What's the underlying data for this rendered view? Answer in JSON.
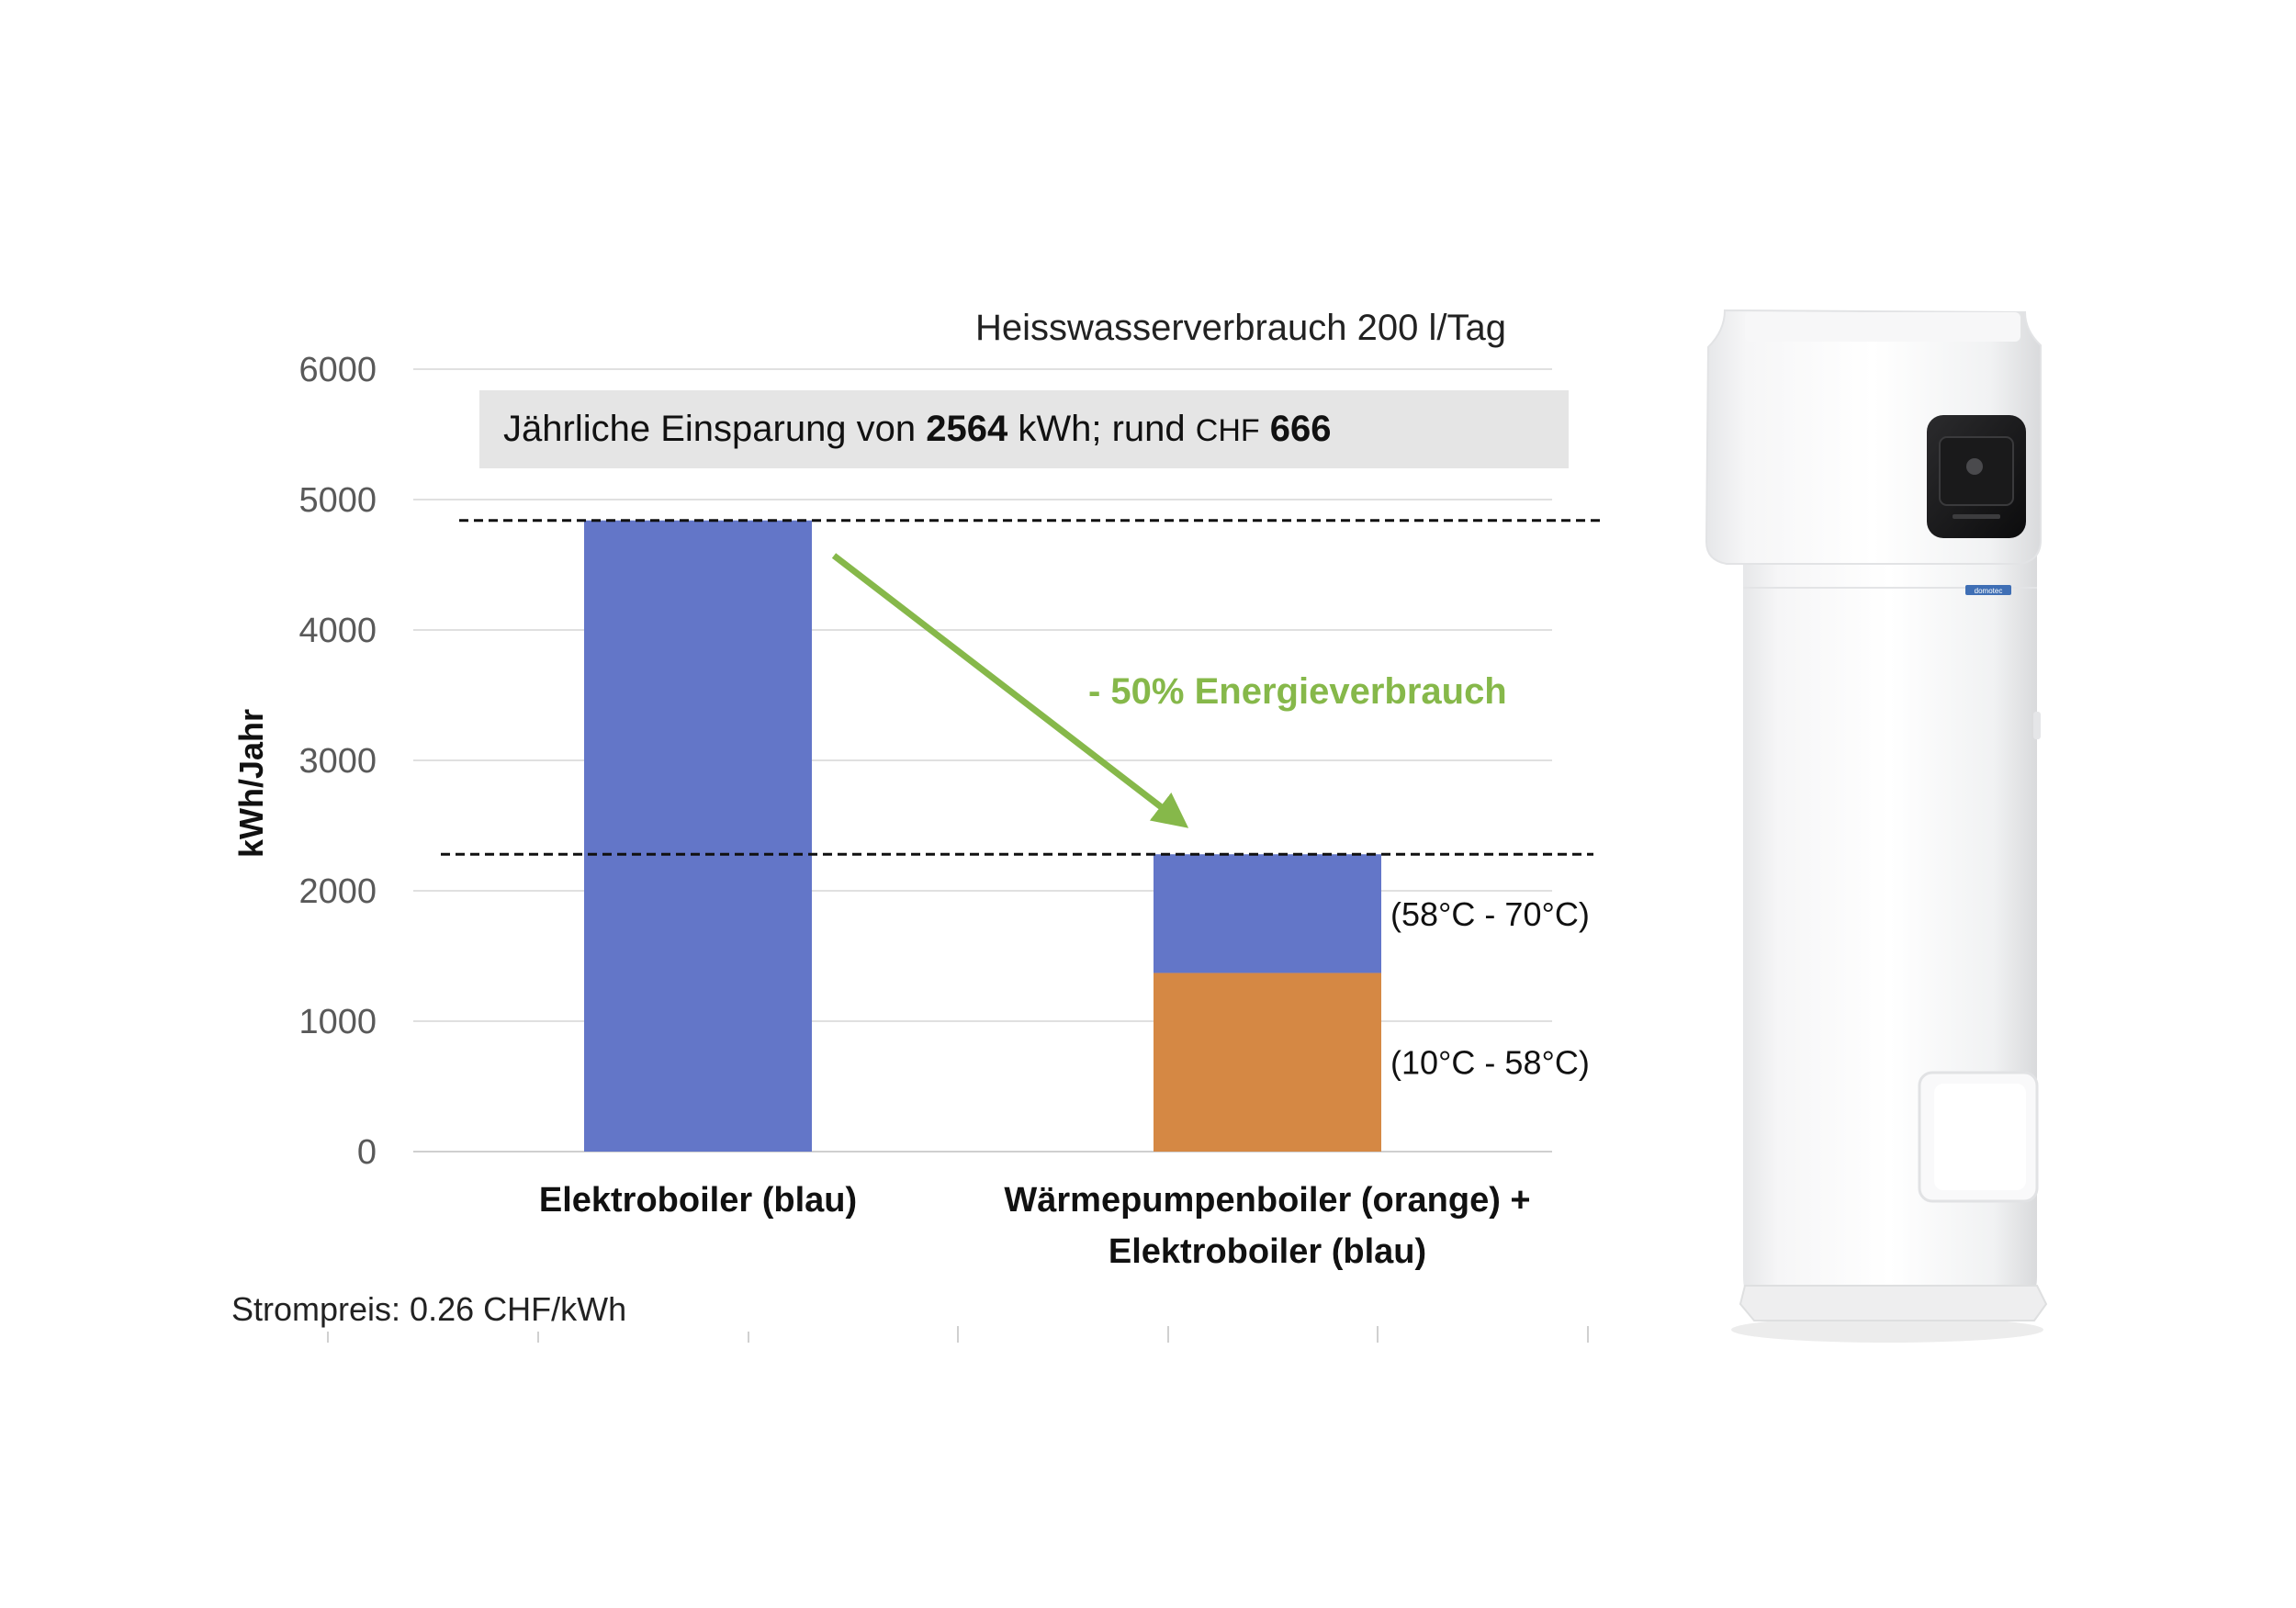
{
  "chart_data": {
    "type": "bar",
    "stacked": true,
    "subtitle": "Heisswasserverbrauch 200 l/Tag",
    "ylabel": "kWh/Jahr",
    "ylim": [
      0,
      6000
    ],
    "yticks": [
      0,
      1000,
      2000,
      3000,
      4000,
      5000,
      6000
    ],
    "grid": true,
    "categories": [
      [
        "Elektroboiler (blau)"
      ],
      [
        "Wärmepumpenboiler (orange) +",
        "Elektroboiler (blau)"
      ]
    ],
    "series": [
      {
        "color": "#6376c8",
        "values": [
          4840,
          0
        ]
      },
      {
        "color": "#d58844",
        "values": [
          0,
          1370
        ]
      },
      {
        "color": "#6376c8",
        "values": [
          0,
          910
        ]
      }
    ],
    "segment_labels": [
      {
        "category": 1,
        "series": 1,
        "text": "(10°C - 58°C)"
      },
      {
        "category": 1,
        "series": 2,
        "text": "(58°C - 70°C)"
      }
    ],
    "reference_lines": [
      4840,
      2280
    ],
    "callout": {
      "parts": [
        {
          "text": "Jährliche Einsparung von ",
          "bold": false
        },
        {
          "text": "2564",
          "bold": true
        },
        {
          "text": " kWh; rund ",
          "bold": false
        },
        {
          "text": "CHF",
          "bold": false,
          "small": true
        },
        {
          "text": " ",
          "bold": false
        },
        {
          "text": "666",
          "bold": true
        }
      ]
    },
    "arrow_label": "- 50% Energieverbrauch",
    "arrow_color": "#86b84a",
    "footnote": "Strompreis: 0.26 CHF/kWh"
  },
  "product_image": {
    "icon": "heat-pump-boiler-icon",
    "brand_label": "domotec"
  }
}
